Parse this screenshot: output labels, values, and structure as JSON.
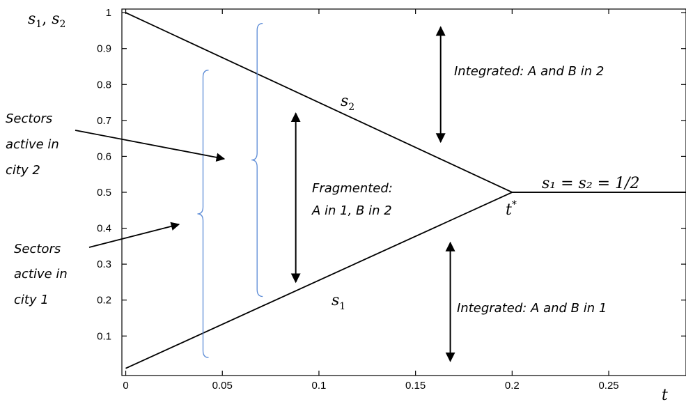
{
  "chart_data": {
    "type": "line",
    "xlim": [
      -0.002,
      0.29
    ],
    "ylim": [
      -0.01,
      1.01
    ],
    "grid": false,
    "x_ticks": [
      0,
      0.05,
      0.1,
      0.15,
      0.2,
      0.25
    ],
    "x_tick_labels": [
      "0",
      "0.05",
      "0.1",
      "0.15",
      "0.2",
      "0.25"
    ],
    "y_ticks": [
      0.1,
      0.2,
      0.3,
      0.4,
      0.5,
      0.6,
      0.7,
      0.8,
      0.9,
      1
    ],
    "y_tick_labels": [
      "0.1",
      "0.2",
      "0.3",
      "0.4",
      "0.5",
      "0.6",
      "0.7",
      "0.8",
      "0.9",
      "1"
    ],
    "xlabel": "t",
    "ylabel": {
      "base": "s",
      "sub1": "1",
      "sep": ", ",
      "sub2": "2"
    },
    "series": [
      {
        "name": "s2",
        "points": [
          [
            0,
            1
          ],
          [
            0.2,
            0.5
          ],
          [
            0.29,
            0.5
          ]
        ]
      },
      {
        "name": "s1",
        "points": [
          [
            0,
            0.01
          ],
          [
            0.2,
            0.5
          ],
          [
            0.29,
            0.5
          ]
        ]
      }
    ],
    "braces": [
      {
        "x": 0.04,
        "y_low": 0.04,
        "y_high": 0.84,
        "color": "#5b8bd6"
      },
      {
        "x": 0.068,
        "y_low": 0.21,
        "y_high": 0.97,
        "color": "#5b8bd6"
      }
    ],
    "double_arrows": [
      {
        "x": 0.088,
        "y_low": 0.25,
        "y_high": 0.72
      },
      {
        "x": 0.163,
        "y_low": 0.64,
        "y_high": 0.96
      },
      {
        "x": 0.168,
        "y_low": 0.03,
        "y_high": 0.36
      }
    ],
    "series_labels": {
      "s2": {
        "base": "s",
        "sub": "2"
      },
      "s1": {
        "base": "s",
        "sub": "1"
      },
      "tstar": {
        "base": "t",
        "sup": "*"
      },
      "equal": "s₁ = s₂ = 1/2"
    },
    "annotations": {
      "integrated_top": "Integrated: A and B in 2",
      "integrated_bottom": "Integrated: A and B in 1",
      "fragmented_line1": "Fragmented:",
      "fragmented_line2": "A in 1, B in 2",
      "city2_line1": "Sectors",
      "city2_line2": "active in",
      "city2_line3": "city 2",
      "city1_line1": "Sectors",
      "city1_line2": "active in",
      "city1_line3": "city 1"
    }
  }
}
